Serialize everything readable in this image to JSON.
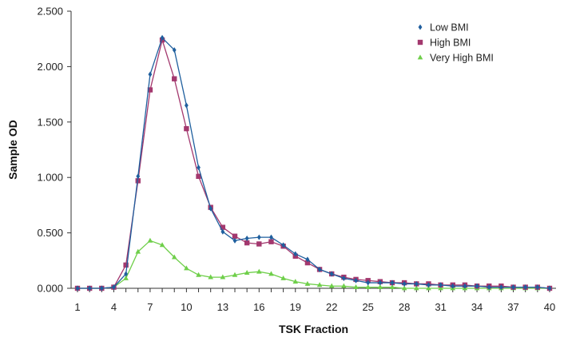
{
  "chart_data": {
    "type": "line",
    "xlabel": "TSK Fraction",
    "ylabel": "Sample OD",
    "x": [
      1,
      2,
      3,
      4,
      5,
      6,
      7,
      8,
      9,
      10,
      11,
      12,
      13,
      14,
      15,
      16,
      17,
      18,
      19,
      20,
      21,
      22,
      23,
      24,
      25,
      26,
      27,
      28,
      29,
      30,
      31,
      32,
      33,
      34,
      35,
      36,
      37,
      38,
      39,
      40
    ],
    "xticks": [
      1,
      4,
      7,
      10,
      13,
      16,
      19,
      22,
      25,
      28,
      31,
      34,
      37,
      40
    ],
    "xtick_labels": [
      "1",
      "4",
      "7",
      "10",
      "13",
      "16",
      "19",
      "22",
      "25",
      "28",
      "31",
      "34",
      "37",
      "40"
    ],
    "ylim": [
      0,
      2.5
    ],
    "yticks": [
      0,
      0.5,
      1.0,
      1.5,
      2.0,
      2.5
    ],
    "ytick_labels": [
      "0.000",
      "0.500",
      "1.000",
      "1.500",
      "2.000",
      "2.500"
    ],
    "grid": false,
    "legend": "top-right",
    "series": [
      {
        "name": "Low BMI",
        "color": "#1f5f9e",
        "marker": "diamond",
        "values": [
          0.0,
          0.0,
          0.0,
          0.01,
          0.13,
          1.01,
          1.93,
          2.26,
          2.15,
          1.65,
          1.09,
          0.72,
          0.51,
          0.43,
          0.45,
          0.46,
          0.46,
          0.39,
          0.31,
          0.26,
          0.17,
          0.13,
          0.09,
          0.07,
          0.05,
          0.05,
          0.05,
          0.04,
          0.04,
          0.03,
          0.03,
          0.02,
          0.02,
          0.02,
          0.01,
          0.01,
          0.01,
          0.01,
          0.01,
          0.0
        ]
      },
      {
        "name": "High BMI",
        "color": "#a3386e",
        "marker": "square",
        "values": [
          0.0,
          0.0,
          0.0,
          0.01,
          0.21,
          0.97,
          1.79,
          2.24,
          1.89,
          1.44,
          1.01,
          0.73,
          0.55,
          0.47,
          0.41,
          0.4,
          0.42,
          0.38,
          0.29,
          0.23,
          0.17,
          0.13,
          0.1,
          0.08,
          0.07,
          0.06,
          0.05,
          0.05,
          0.04,
          0.04,
          0.03,
          0.03,
          0.03,
          0.02,
          0.02,
          0.02,
          0.01,
          0.01,
          0.01,
          0.0
        ]
      },
      {
        "name": "Very High BMI",
        "color": "#6fcf4a",
        "marker": "triangle",
        "values": [
          0.0,
          0.0,
          0.0,
          0.01,
          0.09,
          0.33,
          0.43,
          0.39,
          0.28,
          0.18,
          0.12,
          0.1,
          0.1,
          0.12,
          0.14,
          0.15,
          0.13,
          0.09,
          0.06,
          0.04,
          0.03,
          0.02,
          0.02,
          0.01,
          0.01,
          0.01,
          0.01,
          0.0,
          0.0,
          0.0,
          0.0,
          0.0,
          0.0,
          0.0,
          0.0,
          0.0,
          0.0,
          0.0,
          0.0,
          0.0
        ]
      }
    ]
  }
}
